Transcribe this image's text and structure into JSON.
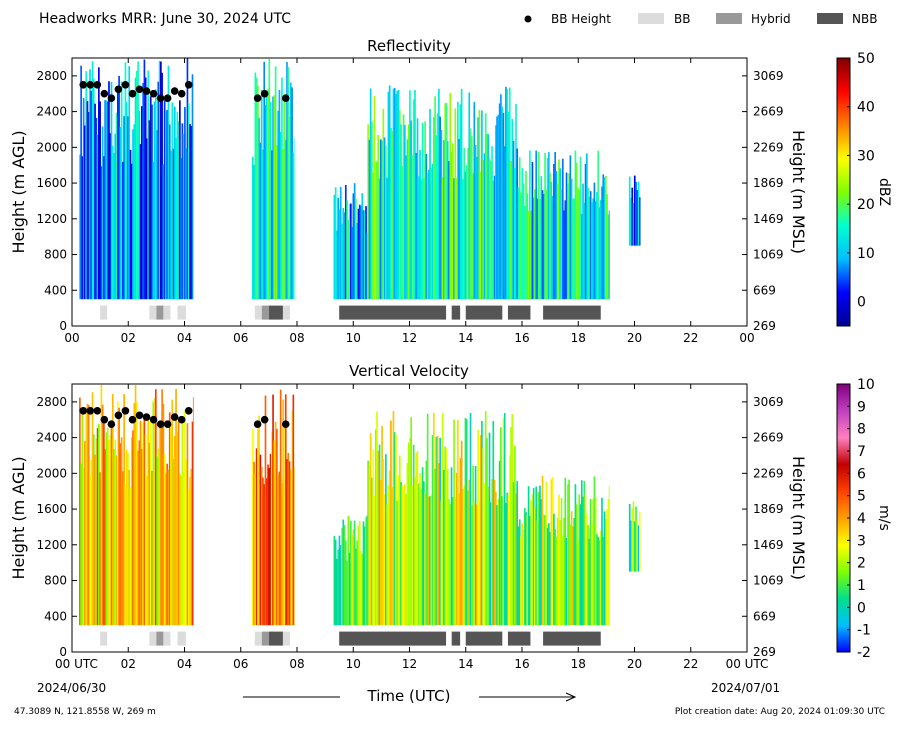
{
  "header": {
    "title": "Headworks MRR:  June 30, 2024 UTC"
  },
  "legend": [
    {
      "label": "BB Height",
      "kind": "dot",
      "color": "#000000"
    },
    {
      "label": "BB",
      "kind": "rect",
      "color": "#dcdcdc"
    },
    {
      "label": "Hybrid",
      "kind": "rect",
      "color": "#999999"
    },
    {
      "label": "NBB",
      "kind": "rect",
      "color": "#555555"
    }
  ],
  "footer": {
    "location": "47.3089 N, 121.8558 W, 269 m",
    "creation": "Plot creation date: Aug 20, 2024 01:09:30 UTC",
    "start_date": "2024/06/30",
    "end_date": "2024/07/01",
    "xlabel": "Time (UTC)"
  },
  "chart_data": [
    {
      "type": "heatmap",
      "title": "Reflectivity",
      "ylabel": "Height (m AGL)",
      "ylabel_right": "Height (m MSL)",
      "xlim": [
        0,
        24
      ],
      "ylim": [
        0,
        3000
      ],
      "x_ticks": [
        "00",
        "02",
        "04",
        "06",
        "08",
        "10",
        "12",
        "14",
        "16",
        "18",
        "20",
        "22",
        "00"
      ],
      "y_ticks": [
        0,
        400,
        800,
        1200,
        1600,
        2000,
        2400,
        2800
      ],
      "y_ticks_right": [
        "269",
        "669",
        "1069",
        "1469",
        "1869",
        "2269",
        "2669",
        "3069"
      ],
      "colorbar": {
        "label": "dBZ",
        "min": -5,
        "max": 50,
        "ticks": [
          0,
          10,
          20,
          30,
          40,
          50
        ],
        "stops": [
          "#00008f",
          "#0000ff",
          "#00bfff",
          "#00ffd0",
          "#7fff00",
          "#ffff00",
          "#ff8000",
          "#ff0000",
          "#800000"
        ]
      },
      "echo_segments": [
        {
          "x0": 0.25,
          "x1": 4.3,
          "top": 3000,
          "bottom": 300,
          "level": 0.22
        },
        {
          "x0": 6.4,
          "x1": 7.9,
          "top": 3000,
          "bottom": 300,
          "level": 0.35
        },
        {
          "x0": 9.3,
          "x1": 10.5,
          "top": 1600,
          "bottom": 300,
          "level": 0.3
        },
        {
          "x0": 10.5,
          "x1": 12.7,
          "top": 2700,
          "bottom": 300,
          "level": 0.38
        },
        {
          "x0": 12.7,
          "x1": 15.8,
          "top": 2700,
          "bottom": 300,
          "level": 0.36
        },
        {
          "x0": 15.8,
          "x1": 19.1,
          "top": 2000,
          "bottom": 300,
          "level": 0.34
        },
        {
          "x0": 19.8,
          "x1": 20.2,
          "top": 1700,
          "bottom": 900,
          "level": 0.18
        }
      ]
    },
    {
      "type": "heatmap",
      "title": "Vertical Velocity",
      "ylabel": "Height (m AGL)",
      "ylabel_right": "Height (m MSL)",
      "xlim": [
        0,
        24
      ],
      "ylim": [
        0,
        3000
      ],
      "x_ticks": [
        "00 UTC",
        "02",
        "04",
        "06",
        "08",
        "10",
        "12",
        "14",
        "16",
        "18",
        "20",
        "22",
        "00 UTC"
      ],
      "y_ticks": [
        0,
        400,
        800,
        1200,
        1600,
        2000,
        2400,
        2800
      ],
      "y_ticks_right": [
        "269",
        "669",
        "1069",
        "1469",
        "1869",
        "2269",
        "2669",
        "3069"
      ],
      "colorbar": {
        "label": "m/s",
        "min": -2,
        "max": 10,
        "ticks": [
          -2,
          -1,
          0,
          1,
          2,
          3,
          4,
          5,
          6,
          7,
          8,
          9,
          10
        ],
        "stops": [
          "#0000ff",
          "#00bfff",
          "#00e08a",
          "#80ff00",
          "#ffff00",
          "#ffa000",
          "#ff4000",
          "#c00000",
          "#ff80c0",
          "#c040c0",
          "#800080"
        ]
      },
      "echo_segments": [
        {
          "x0": 0.25,
          "x1": 4.3,
          "top": 3000,
          "bottom": 300,
          "level": 0.45
        },
        {
          "x0": 6.4,
          "x1": 7.9,
          "top": 3000,
          "bottom": 300,
          "level": 0.55
        },
        {
          "x0": 9.3,
          "x1": 10.5,
          "top": 1600,
          "bottom": 300,
          "level": 0.3
        },
        {
          "x0": 10.5,
          "x1": 12.7,
          "top": 2700,
          "bottom": 300,
          "level": 0.33
        },
        {
          "x0": 12.7,
          "x1": 15.8,
          "top": 2700,
          "bottom": 300,
          "level": 0.32
        },
        {
          "x0": 15.8,
          "x1": 19.1,
          "top": 2000,
          "bottom": 300,
          "level": 0.3
        },
        {
          "x0": 19.8,
          "x1": 20.2,
          "top": 1700,
          "bottom": 900,
          "level": 0.25
        }
      ]
    }
  ],
  "bb_height": [
    {
      "x": 0.4,
      "y": 2700
    },
    {
      "x": 0.65,
      "y": 2700
    },
    {
      "x": 0.9,
      "y": 2700
    },
    {
      "x": 1.15,
      "y": 2600
    },
    {
      "x": 1.4,
      "y": 2550
    },
    {
      "x": 1.65,
      "y": 2650
    },
    {
      "x": 1.9,
      "y": 2700
    },
    {
      "x": 2.15,
      "y": 2600
    },
    {
      "x": 2.4,
      "y": 2650
    },
    {
      "x": 2.65,
      "y": 2630
    },
    {
      "x": 2.9,
      "y": 2600
    },
    {
      "x": 3.15,
      "y": 2550
    },
    {
      "x": 3.4,
      "y": 2550
    },
    {
      "x": 3.65,
      "y": 2630
    },
    {
      "x": 3.9,
      "y": 2600
    },
    {
      "x": 4.15,
      "y": 2700
    },
    {
      "x": 6.6,
      "y": 2550
    },
    {
      "x": 6.85,
      "y": 2600
    },
    {
      "x": 7.6,
      "y": 2550
    }
  ],
  "bb_type_bars": [
    {
      "x0": 1.0,
      "x1": 1.25,
      "type": "BB"
    },
    {
      "x0": 2.75,
      "x1": 3.0,
      "type": "BB"
    },
    {
      "x0": 3.0,
      "x1": 3.25,
      "type": "Hybrid"
    },
    {
      "x0": 3.25,
      "x1": 3.5,
      "type": "BB"
    },
    {
      "x0": 3.75,
      "x1": 4.05,
      "type": "BB"
    },
    {
      "x0": 6.5,
      "x1": 6.75,
      "type": "BB"
    },
    {
      "x0": 6.75,
      "x1": 7.0,
      "type": "Hybrid"
    },
    {
      "x0": 7.0,
      "x1": 7.5,
      "type": "NBB"
    },
    {
      "x0": 7.5,
      "x1": 7.75,
      "type": "BB"
    },
    {
      "x0": 9.5,
      "x1": 13.3,
      "type": "NBB"
    },
    {
      "x0": 13.5,
      "x1": 13.8,
      "type": "NBB"
    },
    {
      "x0": 14.0,
      "x1": 15.3,
      "type": "NBB"
    },
    {
      "x0": 15.5,
      "x1": 16.3,
      "type": "NBB"
    },
    {
      "x0": 16.75,
      "x1": 18.8,
      "type": "NBB"
    }
  ]
}
